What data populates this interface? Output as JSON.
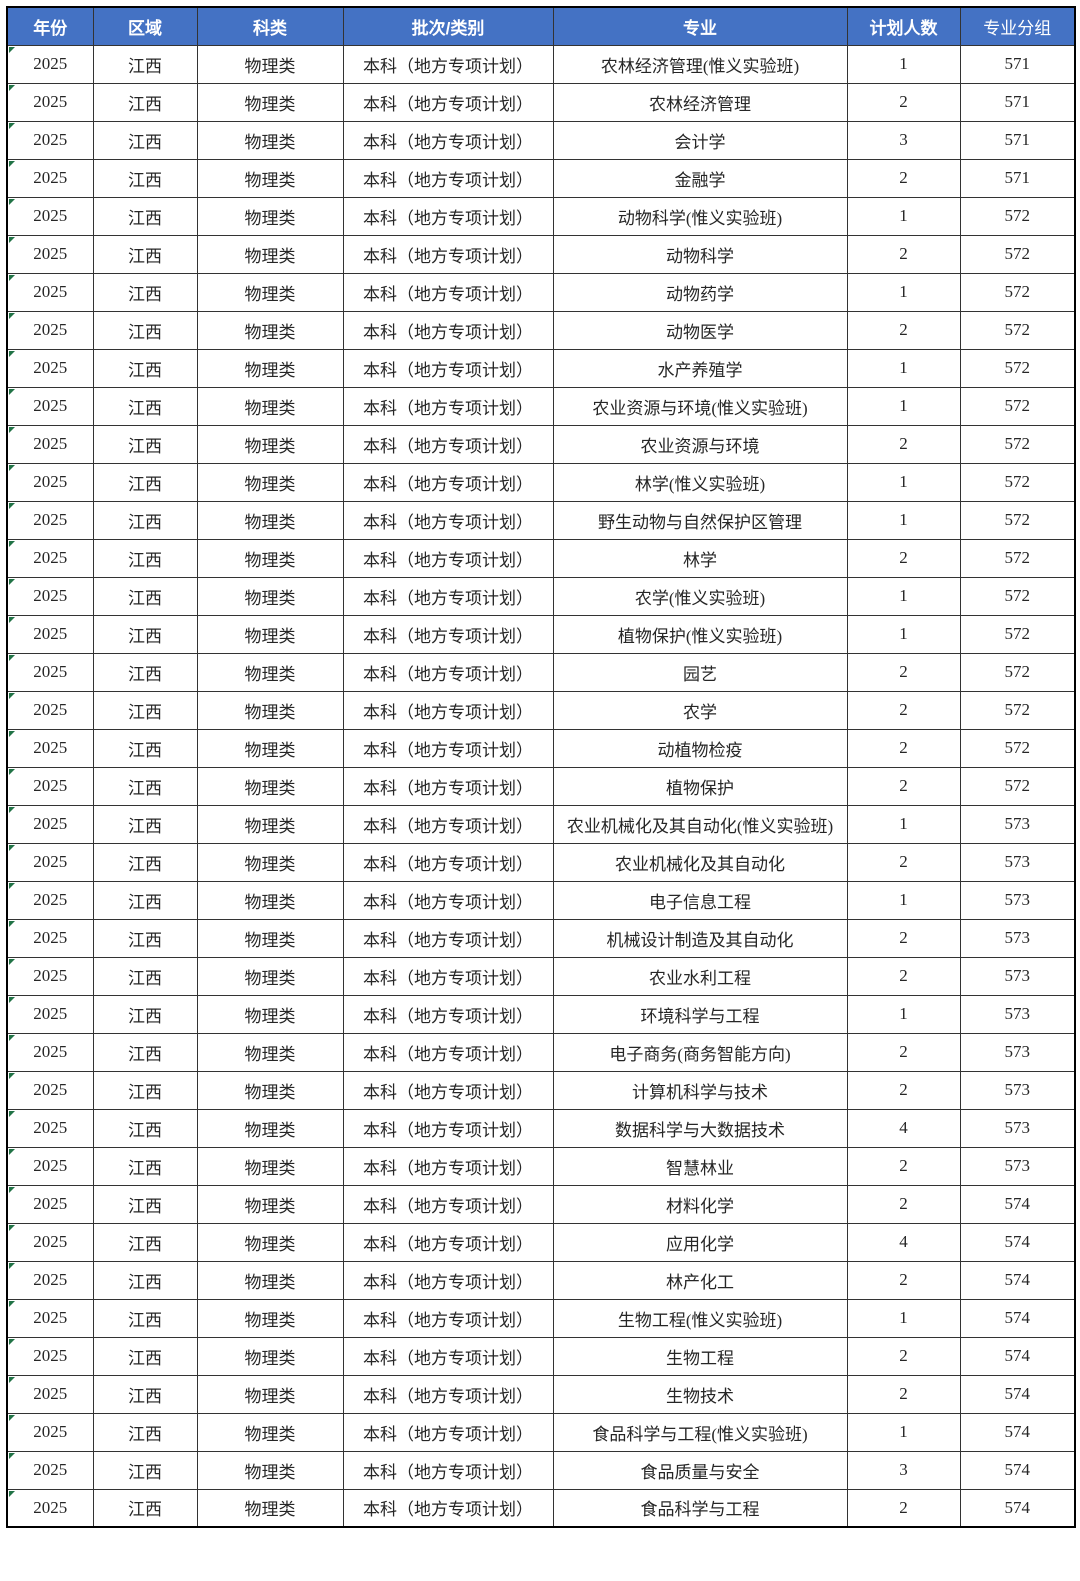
{
  "colors": {
    "header_bg": "#4472C4",
    "header_text": "#FFFFFF",
    "grid_line": "#333333",
    "outer_border": "#000000",
    "body_text": "#262626",
    "flag_green": "#217346",
    "page_bg": "#FFFFFF"
  },
  "table": {
    "columns": [
      "年份",
      "区域",
      "科类",
      "批次/类别",
      "专业",
      "计划人数",
      "专业分组"
    ],
    "rows": [
      [
        "2025",
        "江西",
        "物理类",
        "本科（地方专项计划）",
        "农林经济管理(惟义实验班)",
        "1",
        "571"
      ],
      [
        "2025",
        "江西",
        "物理类",
        "本科（地方专项计划）",
        "农林经济管理",
        "2",
        "571"
      ],
      [
        "2025",
        "江西",
        "物理类",
        "本科（地方专项计划）",
        "会计学",
        "3",
        "571"
      ],
      [
        "2025",
        "江西",
        "物理类",
        "本科（地方专项计划）",
        "金融学",
        "2",
        "571"
      ],
      [
        "2025",
        "江西",
        "物理类",
        "本科（地方专项计划）",
        "动物科学(惟义实验班)",
        "1",
        "572"
      ],
      [
        "2025",
        "江西",
        "物理类",
        "本科（地方专项计划）",
        "动物科学",
        "2",
        "572"
      ],
      [
        "2025",
        "江西",
        "物理类",
        "本科（地方专项计划）",
        "动物药学",
        "1",
        "572"
      ],
      [
        "2025",
        "江西",
        "物理类",
        "本科（地方专项计划）",
        "动物医学",
        "2",
        "572"
      ],
      [
        "2025",
        "江西",
        "物理类",
        "本科（地方专项计划）",
        "水产养殖学",
        "1",
        "572"
      ],
      [
        "2025",
        "江西",
        "物理类",
        "本科（地方专项计划）",
        "农业资源与环境(惟义实验班)",
        "1",
        "572"
      ],
      [
        "2025",
        "江西",
        "物理类",
        "本科（地方专项计划）",
        "农业资源与环境",
        "2",
        "572"
      ],
      [
        "2025",
        "江西",
        "物理类",
        "本科（地方专项计划）",
        "林学(惟义实验班)",
        "1",
        "572"
      ],
      [
        "2025",
        "江西",
        "物理类",
        "本科（地方专项计划）",
        "野生动物与自然保护区管理",
        "1",
        "572"
      ],
      [
        "2025",
        "江西",
        "物理类",
        "本科（地方专项计划）",
        "林学",
        "2",
        "572"
      ],
      [
        "2025",
        "江西",
        "物理类",
        "本科（地方专项计划）",
        "农学(惟义实验班)",
        "1",
        "572"
      ],
      [
        "2025",
        "江西",
        "物理类",
        "本科（地方专项计划）",
        "植物保护(惟义实验班)",
        "1",
        "572"
      ],
      [
        "2025",
        "江西",
        "物理类",
        "本科（地方专项计划）",
        "园艺",
        "2",
        "572"
      ],
      [
        "2025",
        "江西",
        "物理类",
        "本科（地方专项计划）",
        "农学",
        "2",
        "572"
      ],
      [
        "2025",
        "江西",
        "物理类",
        "本科（地方专项计划）",
        "动植物检疫",
        "2",
        "572"
      ],
      [
        "2025",
        "江西",
        "物理类",
        "本科（地方专项计划）",
        "植物保护",
        "2",
        "572"
      ],
      [
        "2025",
        "江西",
        "物理类",
        "本科（地方专项计划）",
        "农业机械化及其自动化(惟义实验班)",
        "1",
        "573"
      ],
      [
        "2025",
        "江西",
        "物理类",
        "本科（地方专项计划）",
        "农业机械化及其自动化",
        "2",
        "573"
      ],
      [
        "2025",
        "江西",
        "物理类",
        "本科（地方专项计划）",
        "电子信息工程",
        "1",
        "573"
      ],
      [
        "2025",
        "江西",
        "物理类",
        "本科（地方专项计划）",
        "机械设计制造及其自动化",
        "2",
        "573"
      ],
      [
        "2025",
        "江西",
        "物理类",
        "本科（地方专项计划）",
        "农业水利工程",
        "2",
        "573"
      ],
      [
        "2025",
        "江西",
        "物理类",
        "本科（地方专项计划）",
        "环境科学与工程",
        "1",
        "573"
      ],
      [
        "2025",
        "江西",
        "物理类",
        "本科（地方专项计划）",
        "电子商务(商务智能方向)",
        "2",
        "573"
      ],
      [
        "2025",
        "江西",
        "物理类",
        "本科（地方专项计划）",
        "计算机科学与技术",
        "2",
        "573"
      ],
      [
        "2025",
        "江西",
        "物理类",
        "本科（地方专项计划）",
        "数据科学与大数据技术",
        "4",
        "573"
      ],
      [
        "2025",
        "江西",
        "物理类",
        "本科（地方专项计划）",
        "智慧林业",
        "2",
        "573"
      ],
      [
        "2025",
        "江西",
        "物理类",
        "本科（地方专项计划）",
        "材料化学",
        "2",
        "574"
      ],
      [
        "2025",
        "江西",
        "物理类",
        "本科（地方专项计划）",
        "应用化学",
        "4",
        "574"
      ],
      [
        "2025",
        "江西",
        "物理类",
        "本科（地方专项计划）",
        "林产化工",
        "2",
        "574"
      ],
      [
        "2025",
        "江西",
        "物理类",
        "本科（地方专项计划）",
        "生物工程(惟义实验班)",
        "1",
        "574"
      ],
      [
        "2025",
        "江西",
        "物理类",
        "本科（地方专项计划）",
        "生物工程",
        "2",
        "574"
      ],
      [
        "2025",
        "江西",
        "物理类",
        "本科（地方专项计划）",
        "生物技术",
        "2",
        "574"
      ],
      [
        "2025",
        "江西",
        "物理类",
        "本科（地方专项计划）",
        "食品科学与工程(惟义实验班)",
        "1",
        "574"
      ],
      [
        "2025",
        "江西",
        "物理类",
        "本科（地方专项计划）",
        "食品质量与安全",
        "3",
        "574"
      ],
      [
        "2025",
        "江西",
        "物理类",
        "本科（地方专项计划）",
        "食品科学与工程",
        "2",
        "574"
      ]
    ]
  }
}
